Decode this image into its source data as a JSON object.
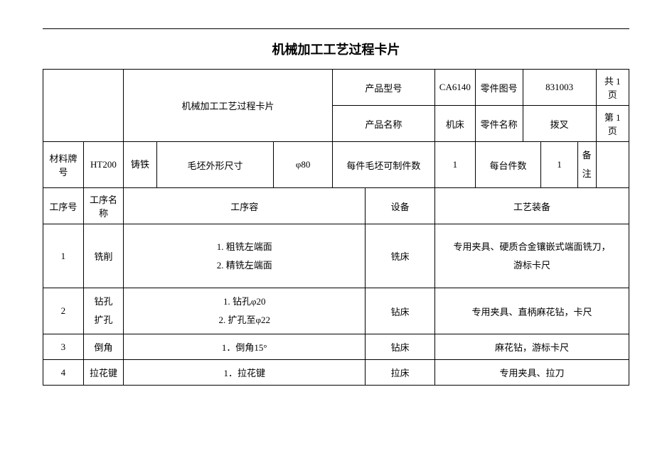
{
  "title": "机械加工工艺过程卡片",
  "header": {
    "cardLabel": "机械加工工艺过程卡片",
    "productModelLabel": "产品型号",
    "productModel": "CA6140",
    "partDrawingNoLabel": "零件图号",
    "partDrawingNo": "831003",
    "pageTotal": "共 1 页",
    "productNameLabel": "产品名称",
    "productName": "机床",
    "partNameLabel": "零件名称",
    "partName": "拨叉",
    "pageCurrent": "第 1 页"
  },
  "material": {
    "gradeLabel": "材料牌号",
    "grade": "HT200",
    "type": "铸铁",
    "blankSizeLabel": "毛坯外形尺寸",
    "blankSize": "φ80",
    "perBlankLabel": "每件毛坯可制件数",
    "perBlank": "1",
    "perMachineLabel": "每台件数",
    "perMachine": "1",
    "remarkLabel": "备注"
  },
  "columns": {
    "procNo": "工序号",
    "procName": "工序名称",
    "procContent": "工序容",
    "equipment": "设备",
    "tooling": "工艺装备"
  },
  "rows": [
    {
      "no": "1",
      "name": "铣削",
      "content": "1. 粗铣左端面\n2. 精铣左端面",
      "equipment": "铣床",
      "tooling": "专用夹具、硬质合金镶嵌式端面铣刀，\n游标卡尺"
    },
    {
      "no": "2",
      "name": "钻孔\n扩孔",
      "content": "1. 钻孔φ20\n2. 扩孔至φ22",
      "equipment": "钻床",
      "tooling": "专用夹具、直柄麻花钻，卡尺"
    },
    {
      "no": "3",
      "name": "倒角",
      "content": "1．倒角15°",
      "equipment": "钻床",
      "tooling": "麻花钻，游标卡尺"
    },
    {
      "no": "4",
      "name": "拉花键",
      "content": "1．拉花键",
      "equipment": "拉床",
      "tooling": "专用夹具、拉刀"
    }
  ],
  "style": {
    "bg": "#ffffff",
    "border": "#000000",
    "titleFontSize": 18,
    "bodyFontSize": 13,
    "fontFamily": "SimSun"
  }
}
